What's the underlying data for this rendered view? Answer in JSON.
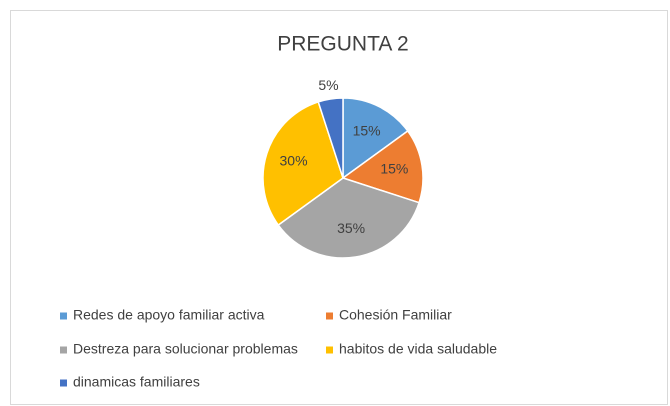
{
  "chart_data": {
    "type": "pie",
    "title": "PREGUNTA 2",
    "categories": [
      "Redes de apoyo familiar activa",
      "Cohesión Familiar",
      "Destreza para solucionar problemas",
      "habitos de vida saludable",
      "dinamicas familiares"
    ],
    "values": [
      15,
      15,
      35,
      30,
      5
    ],
    "value_labels": [
      "15%",
      "15%",
      "35%",
      "30%",
      "5%"
    ],
    "colors": [
      "#5b9bd5",
      "#ed7d31",
      "#a5a5a5",
      "#ffc000",
      "#4472c4"
    ],
    "legend": "bottom"
  }
}
